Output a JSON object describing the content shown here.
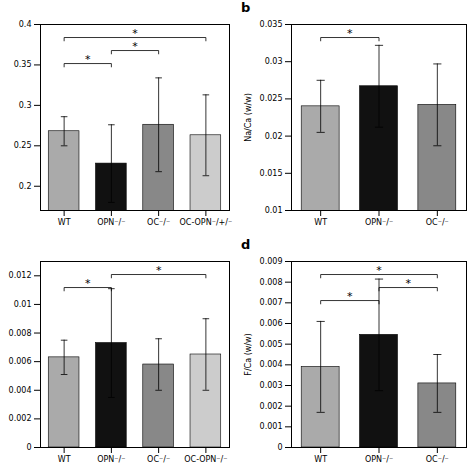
{
  "chart_data": [
    {
      "type": "bar",
      "categories": [
        "WT",
        "OPN⁻/⁻",
        "OC⁻/⁻",
        "OC-OPN⁻/+/⁻"
      ],
      "values": [
        0.268,
        0.228,
        0.276,
        0.263
      ],
      "errors": [
        0.018,
        0.048,
        0.058,
        0.05
      ],
      "colors": [
        "#aaaaaa",
        "#111111",
        "#888888",
        "#cccccc"
      ],
      "ylim": [
        0.17,
        0.4
      ],
      "yticks": [
        0.2,
        0.25,
        0.3,
        0.35,
        0.4
      ],
      "grid": false,
      "significance": [
        {
          "from": "WT",
          "to": "OPN⁻/⁻",
          "label": "*"
        },
        {
          "from": "OPN⁻/⁻",
          "to": "OC⁻/⁻",
          "label": "*"
        },
        {
          "from": "WT",
          "to": "OC-OPN⁻/+/⁻",
          "label": "*"
        }
      ]
    },
    {
      "type": "bar",
      "title": "b",
      "categories": [
        "WT",
        "OPN⁻/⁻",
        "OC⁻/⁻"
      ],
      "values": [
        0.024,
        0.0267,
        0.0242
      ],
      "errors": [
        0.0035,
        0.0055,
        0.0055
      ],
      "colors": [
        "#aaaaaa",
        "#111111",
        "#888888"
      ],
      "ylabel": "Na/Ca (w/w)",
      "ylim": [
        0.01,
        0.035
      ],
      "yticks": [
        0.01,
        0.015,
        0.02,
        0.025,
        0.03,
        0.035
      ],
      "grid": false,
      "significance": [
        {
          "from": "WT",
          "to": "OPN⁻/⁻",
          "label": "*"
        }
      ]
    },
    {
      "type": "bar",
      "categories": [
        "WT",
        "OPN⁻/⁻",
        "OC⁻/⁻",
        "OC-OPN⁻/⁻"
      ],
      "values": [
        0.0063,
        0.0073,
        0.0058,
        0.0065
      ],
      "errors": [
        0.0012,
        0.0038,
        0.0018,
        0.0025
      ],
      "colors": [
        "#aaaaaa",
        "#111111",
        "#888888",
        "#cccccc"
      ],
      "ylim": [
        0,
        0.013
      ],
      "yticks": [
        0,
        0.002,
        0.004,
        0.006,
        0.008,
        0.01,
        0.012
      ],
      "grid": false,
      "significance": [
        {
          "from": "WT",
          "to": "OPN⁻/⁻",
          "label": "*"
        },
        {
          "from": "OPN⁻/⁻",
          "to": "OC-OPN⁻/⁻",
          "label": "*"
        }
      ]
    },
    {
      "type": "bar",
      "title": "d",
      "categories": [
        "WT",
        "OPN⁻/⁻",
        "OC⁻/⁻"
      ],
      "values": [
        0.0039,
        0.00545,
        0.0031
      ],
      "errors": [
        0.0022,
        0.0027,
        0.0014
      ],
      "colors": [
        "#aaaaaa",
        "#111111",
        "#888888"
      ],
      "ylabel": "F/Ca (w/w)",
      "ylim": [
        0,
        0.009
      ],
      "yticks": [
        0,
        0.001,
        0.002,
        0.003,
        0.004,
        0.005,
        0.006,
        0.007,
        0.008,
        0.009
      ],
      "grid": false,
      "significance": [
        {
          "from": "WT",
          "to": "OPN⁻/⁻",
          "label": "*"
        },
        {
          "from": "OPN⁻/⁻",
          "to": "OC⁻/⁻",
          "label": "*"
        },
        {
          "from": "WT",
          "to": "OC⁻/⁻",
          "label": "*"
        }
      ]
    }
  ]
}
